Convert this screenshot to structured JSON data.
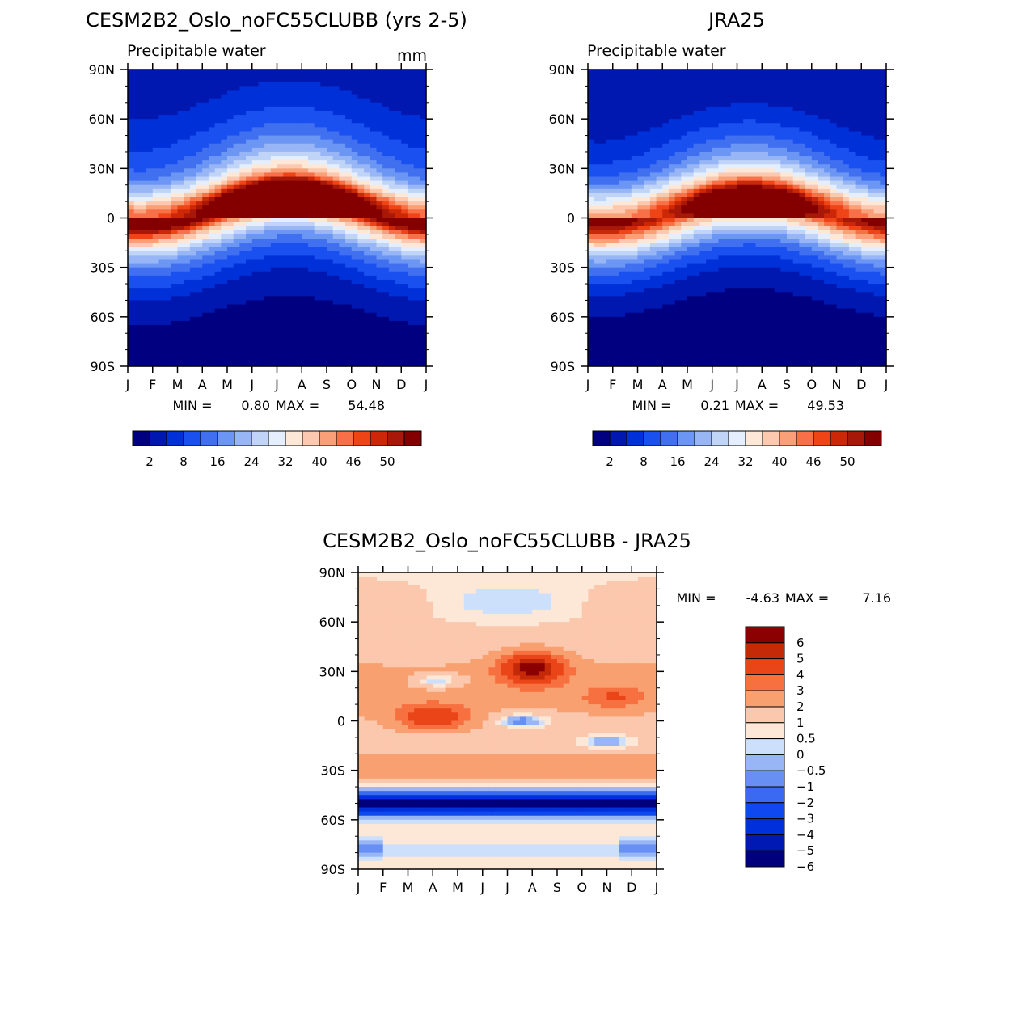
{
  "colors": {
    "abs_palette": [
      "#000080",
      "#0018b0",
      "#0030d8",
      "#1a50f0",
      "#4070f0",
      "#6c96f4",
      "#98b6f6",
      "#c0d4f8",
      "#e4eefc",
      "#fde8d8",
      "#fcc8b0",
      "#faa078",
      "#f87048",
      "#ee4416",
      "#cc2808",
      "#a81808",
      "#840000"
    ],
    "diff_palette": [
      "#00007c",
      "#0018b4",
      "#0030dc",
      "#1048f0",
      "#3a6af2",
      "#6890f4",
      "#98b6f6",
      "#cce0fc",
      "#fde8d8",
      "#fbc7ad",
      "#f9a070",
      "#f77040",
      "#ea4518",
      "#c42a08",
      "#8b0000"
    ]
  },
  "chart_data": [
    {
      "id": "model",
      "type": "heatmap",
      "title": "CESM2B2_Oslo_noFC55CLUBB (yrs 2-5)",
      "subtitle": "Precipitable water",
      "units": "mm",
      "x_tick_labels": [
        "J",
        "F",
        "M",
        "A",
        "M",
        "J",
        "J",
        "A",
        "S",
        "O",
        "N",
        "D",
        "J"
      ],
      "y_tick_labels": [
        "90N",
        "60N",
        "30N",
        "0",
        "30S",
        "60S",
        "90S"
      ],
      "xlim": [
        0,
        12
      ],
      "ylim": [
        -90,
        90
      ],
      "min_label": "MIN =",
      "min_value": "0.80",
      "max_label": "MAX =",
      "max_value": "54.48",
      "colorbar_levels": [
        0,
        2,
        5,
        8,
        12,
        16,
        20,
        24,
        28,
        32,
        36,
        40,
        43,
        46,
        48,
        50,
        52
      ],
      "colorbar_tick_labels": [
        "2",
        "8",
        "16",
        "24",
        "32",
        "40",
        "46",
        "50"
      ],
      "field": {
        "equator_peak": 52,
        "itcz_lat_jan": -1,
        "itcz_lat_jul": 12,
        "itcz_width": 16,
        "south_decay": 35,
        "north_decay": 38,
        "north_pole_base": 4,
        "south_pole_base": 1
      }
    },
    {
      "id": "obs",
      "type": "heatmap",
      "title": "JRA25",
      "subtitle": "Precipitable water",
      "units": "",
      "x_tick_labels": [
        "J",
        "F",
        "M",
        "A",
        "M",
        "J",
        "J",
        "A",
        "S",
        "O",
        "N",
        "D",
        "J"
      ],
      "y_tick_labels": [
        "90N",
        "60N",
        "30N",
        "0",
        "30S",
        "60S",
        "90S"
      ],
      "xlim": [
        0,
        12
      ],
      "ylim": [
        -90,
        90
      ],
      "min_label": "MIN =",
      "min_value": "0.21",
      "max_label": "MAX =",
      "max_value": "49.53",
      "colorbar_levels": [
        0,
        2,
        5,
        8,
        12,
        16,
        20,
        24,
        28,
        32,
        36,
        40,
        43,
        46,
        48,
        50,
        52
      ],
      "colorbar_tick_labels": [
        "2",
        "8",
        "16",
        "24",
        "32",
        "40",
        "46",
        "50"
      ],
      "field": {
        "equator_peak": 48,
        "itcz_lat_jan": -2,
        "itcz_lat_jul": 10,
        "itcz_width": 17,
        "south_decay": 34,
        "north_decay": 36,
        "north_pole_base": 3,
        "south_pole_base": 0.5
      }
    },
    {
      "id": "diff",
      "type": "heatmap",
      "title": "CESM2B2_Oslo_noFC55CLUBB - JRA25",
      "subtitle": "",
      "units": "",
      "x_tick_labels": [
        "J",
        "F",
        "M",
        "A",
        "M",
        "J",
        "J",
        "A",
        "S",
        "O",
        "N",
        "D",
        "J"
      ],
      "y_tick_labels": [
        "90N",
        "60N",
        "30N",
        "0",
        "30S",
        "60S",
        "90S"
      ],
      "xlim": [
        0,
        12
      ],
      "ylim": [
        -90,
        90
      ],
      "min_label": "MIN =",
      "min_value": "-4.63",
      "max_label": "MAX =",
      "max_value": "7.16",
      "colorbar_levels": [
        -6,
        -5,
        -4,
        -3,
        -2,
        -1,
        -0.5,
        0,
        0.5,
        1,
        2,
        3,
        4,
        5,
        6
      ],
      "colorbar_tick_labels": [
        "6",
        "5",
        "4",
        "3",
        "2",
        "1",
        "0.5",
        "0",
        "-0.5",
        "-1",
        "-2",
        "-3",
        "-4",
        "-5",
        "-6"
      ]
    }
  ]
}
